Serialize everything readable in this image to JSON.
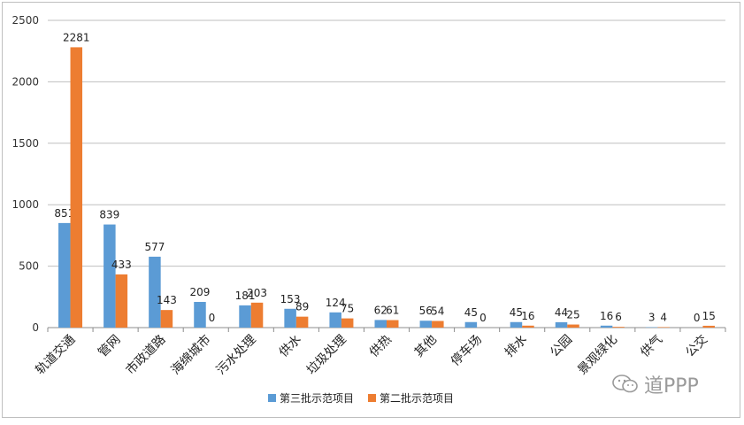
{
  "chart_data": {
    "type": "bar",
    "categories": [
      "轨道交通",
      "管网",
      "市政道路",
      "海绵城市",
      "污水处理",
      "供水",
      "垃圾处理",
      "供热",
      "其他",
      "停车场",
      "排水",
      "公园",
      "景观绿化",
      "供气",
      "公交"
    ],
    "series": [
      {
        "name": "第三批示范项目",
        "color": "#5b9bd5",
        "values": [
          851,
          839,
          577,
          209,
          181,
          153,
          124,
          62,
          56,
          45,
          45,
          44,
          16,
          3,
          0
        ]
      },
      {
        "name": "第二批示范项目",
        "color": "#ed7d31",
        "values": [
          2281,
          433,
          143,
          0,
          203,
          89,
          75,
          61,
          54,
          0,
          16,
          25,
          6,
          4,
          15
        ]
      }
    ],
    "ylim": [
      0,
      2500
    ],
    "yticks": [
      0,
      500,
      1000,
      1500,
      2000,
      2500
    ],
    "grid": true,
    "legend_position": "bottom"
  },
  "watermark": {
    "text": "道PPP",
    "icon": "wechat-icon"
  }
}
